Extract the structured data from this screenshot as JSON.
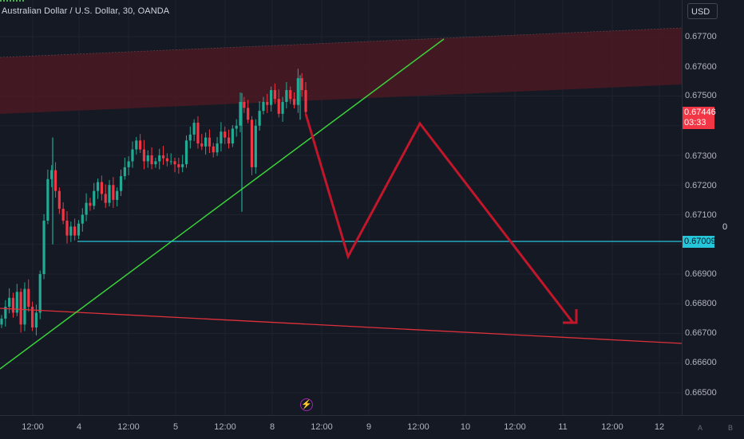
{
  "title": "Australian Dollar / U.S. Dollar, 30, OANDA",
  "currency": "USD",
  "price_labels": [
    "0.67700",
    "0.67600",
    "0.67500",
    "0.67300",
    "0.67200",
    "0.67100",
    "0.66900",
    "0.66800",
    "0.66700",
    "0.66600",
    "0.66500"
  ],
  "last_price": {
    "value": "0.67446",
    "countdown": "03:33",
    "color": "#f23645"
  },
  "hline": {
    "value": "0.67009",
    "color": "#26c6da"
  },
  "axis_right_value": "0",
  "time_labels": [
    "12:00",
    "4",
    "12:00",
    "5",
    "12:00",
    "8",
    "12:00",
    "9",
    "12:00",
    "10",
    "12:00",
    "11",
    "12:00",
    "12"
  ],
  "corner_buttons": [
    "A",
    "B"
  ],
  "lightning_icon": "lightning-icon",
  "colors": {
    "up": "#22ab94",
    "up_bright": "#4caf50",
    "down": "#f23645",
    "trend_green": "#3ad33a",
    "zone": "#4a1a22",
    "projection": "#c2162b"
  },
  "chart_data": {
    "type": "candlestick",
    "symbol": "AUDUSD",
    "interval": "30",
    "ylim": [
      0.6645,
      0.678
    ],
    "last": 0.67446,
    "horizontal_level": 0.67009,
    "closes": [
      0.6675,
      0.6679,
      0.6682,
      0.6677,
      0.6684,
      0.6673,
      0.6685,
      0.6679,
      0.6672,
      0.6677,
      0.669,
      0.6708,
      0.6722,
      0.6725,
      0.6718,
      0.6712,
      0.6708,
      0.6703,
      0.6706,
      0.6703,
      0.6707,
      0.671,
      0.6714,
      0.6713,
      0.6718,
      0.6721,
      0.6717,
      0.6714,
      0.672,
      0.6715,
      0.6718,
      0.6723,
      0.6726,
      0.6728,
      0.6732,
      0.6735,
      0.6732,
      0.6728,
      0.673,
      0.6727,
      0.6728,
      0.673,
      0.6729,
      0.6728,
      0.6728,
      0.6727,
      0.6726,
      0.6727,
      0.6735,
      0.6737,
      0.6741,
      0.6734,
      0.6733,
      0.6736,
      0.6733,
      0.6731,
      0.6734,
      0.6738,
      0.6736,
      0.6734,
      0.6739,
      0.674,
      0.6748,
      0.6746,
      0.6742,
      0.6726,
      0.674,
      0.6745,
      0.6748,
      0.6747,
      0.6752,
      0.6749,
      0.6744,
      0.6748,
      0.6752,
      0.6749,
      0.6747,
      0.6756,
      0.6752,
      0.67446
    ],
    "projection_path": [
      [
        0.67446,
        0
      ],
      [
        0.6695,
        1
      ],
      [
        0.674,
        2
      ],
      [
        0.6673,
        3
      ]
    ]
  }
}
